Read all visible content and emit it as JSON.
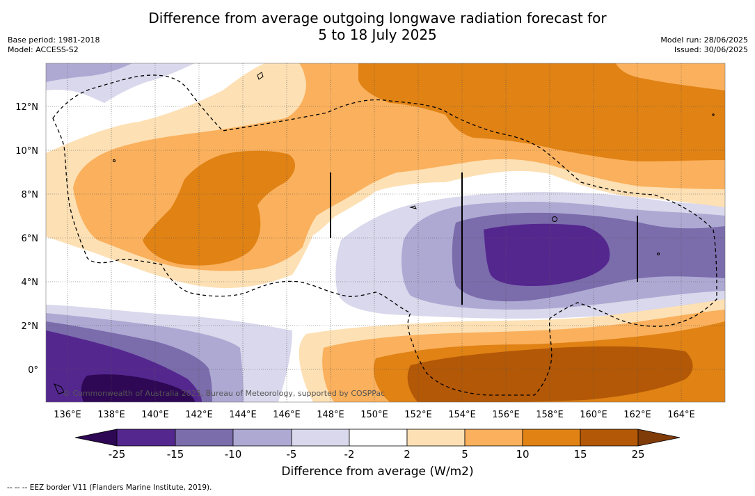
{
  "title": {
    "line1": "Difference from average outgoing longwave radiation forecast for",
    "line2": "5 to 18 July 2025"
  },
  "meta_left": {
    "base_period": "Base period: 1981-2018",
    "model": "Model: ACCESS-S2"
  },
  "meta_right": {
    "model_run": "Model run: 28/06/2025",
    "issued": "Issued: 30/06/2025"
  },
  "map": {
    "lat_labels": [
      "12°N",
      "10°N",
      "8°N",
      "6°N",
      "4°N",
      "2°N",
      "0°"
    ],
    "lon_labels": [
      "136°E",
      "138°E",
      "140°E",
      "142°E",
      "144°E",
      "146°E",
      "148°E",
      "150°E",
      "152°E",
      "154°E",
      "156°E",
      "158°E",
      "160°E",
      "162°E",
      "164°E"
    ],
    "credit": "© Commonwealth of Australia 2025, Bureau of Meteorology, supported by COSPPac"
  },
  "colorbar": {
    "title": "Difference from average (W/m2)",
    "ticks": [
      "-25",
      "-15",
      "-10",
      "-5",
      "-2",
      "2",
      "5",
      "10",
      "15",
      "25"
    ],
    "colors": {
      "below_-25": "#2e0854",
      "-25_-15": "#54278f",
      "-15_-10": "#7b6cab",
      "-10_-5": "#aea9d3",
      "-5_-2": "#d9d8ec",
      "-2_2": "#ffffff",
      "2_5": "#fde0b4",
      "5_10": "#fab05c",
      "10_15": "#e08214",
      "15_25": "#b35806",
      "above_25": "#7f3b08"
    }
  },
  "footnote": "-- -- -- EEZ border V11 (Flanders Marine Institute, 2019)."
}
